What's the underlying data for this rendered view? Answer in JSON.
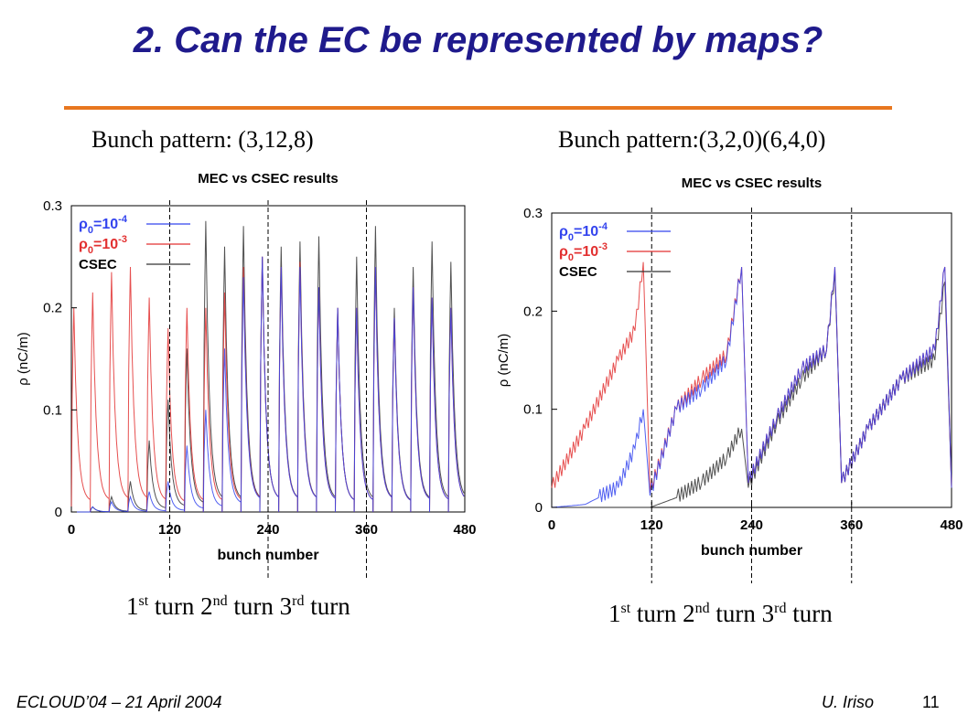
{
  "slide": {
    "title": "2. Can the EC be represented by maps?",
    "footer_left": "ECLOUD’04 – 21 April 2004",
    "footer_author": "U. Iriso",
    "page_number": "11"
  },
  "turn_labels": [
    {
      "n": "1",
      "sup": "st",
      "word": "turn"
    },
    {
      "n": "2",
      "sup": "nd",
      "word": "turn"
    },
    {
      "n": "3",
      "sup": "rd",
      "word": "turn"
    }
  ],
  "colors": {
    "title": "#1f1a8c",
    "rule": "#e8771f",
    "blue": "#3344ee",
    "red": "#e23030",
    "black": "#333333"
  },
  "chart_data": [
    {
      "type": "line",
      "subtitle": "Bunch pattern: (3,12,8)",
      "title": "MEC vs CSEC results",
      "xlabel": "bunch number",
      "ylabel": "ρ (nC/m)",
      "xlim": [
        0,
        480
      ],
      "ylim": [
        0,
        0.3
      ],
      "xticks": [
        "0",
        "120",
        "240",
        "360",
        "480"
      ],
      "yticks": [
        "0",
        "0.1",
        "0.2",
        "0.3"
      ],
      "turn_marks": [
        120,
        240,
        360
      ],
      "grid": false,
      "legend": "top-left",
      "pattern": {
        "period": 23,
        "train_length": 3
      },
      "series": [
        {
          "name": "ρ0=10-4",
          "color": "#3344ee",
          "x": [
            0,
            23,
            46,
            69,
            92,
            115,
            138,
            161,
            184,
            207,
            230,
            253,
            276,
            299,
            322,
            345,
            368,
            391,
            414,
            437,
            460
          ],
          "peaks": [
            0.0,
            0.005,
            0.01,
            0.015,
            0.02,
            0.03,
            0.065,
            0.1,
            0.16,
            0.23,
            0.25,
            0.24,
            0.24,
            0.22,
            0.2,
            0.2,
            0.24,
            0.19,
            0.22,
            0.21,
            0.2
          ]
        },
        {
          "name": "ρ0=10-3",
          "color": "#e23030",
          "x": [
            0,
            23,
            46,
            69,
            92,
            115,
            138,
            161,
            184,
            207,
            230,
            253,
            276,
            299,
            322,
            345,
            368,
            391,
            414,
            437,
            460
          ],
          "peaks": [
            0.2,
            0.215,
            0.235,
            0.24,
            0.21,
            0.18,
            0.2,
            0.2,
            0.215,
            0.24,
            0.25,
            0.24,
            0.245,
            0.22,
            0.2,
            0.2,
            0.24,
            0.19,
            0.22,
            0.21,
            0.2
          ]
        },
        {
          "name": "CSEC",
          "color": "#333333",
          "x": [
            0,
            23,
            46,
            69,
            92,
            115,
            138,
            161,
            184,
            207,
            230,
            253,
            276,
            299,
            322,
            345,
            368,
            391,
            414,
            437,
            460
          ],
          "peaks": [
            0.0,
            0.005,
            0.015,
            0.03,
            0.07,
            0.11,
            0.16,
            0.285,
            0.26,
            0.28,
            0.25,
            0.26,
            0.265,
            0.27,
            0.2,
            0.25,
            0.28,
            0.2,
            0.24,
            0.265,
            0.245
          ]
        }
      ]
    },
    {
      "type": "line",
      "subtitle": "Bunch pattern:(3,2,0)(6,4,0)",
      "title": "MEC vs CSEC results",
      "xlabel": "bunch number",
      "ylabel": "ρ (nC/m)",
      "xlim": [
        0,
        480
      ],
      "ylim": [
        0,
        0.3
      ],
      "xticks": [
        "0",
        "120",
        "240",
        "360",
        "480"
      ],
      "yticks": [
        "0",
        "0.1",
        "0.2",
        "0.3"
      ],
      "turn_marks": [
        120,
        240,
        360
      ],
      "grid": false,
      "legend": "top-left",
      "gap_positions": [
        110,
        228,
        340,
        472
      ],
      "series": [
        {
          "name": "ρ0=10-4",
          "color": "#3344ee",
          "x": [
            0,
            40,
            80,
            100,
            110,
            118,
            150,
            180,
            210,
            228,
            236,
            270,
            300,
            330,
            340,
            348,
            380,
            420,
            460,
            472
          ],
          "y": [
            0.0,
            0.003,
            0.02,
            0.06,
            0.1,
            0.012,
            0.1,
            0.12,
            0.15,
            0.245,
            0.025,
            0.09,
            0.14,
            0.16,
            0.245,
            0.025,
            0.08,
            0.13,
            0.16,
            0.245
          ]
        },
        {
          "name": "ρ0=10-3",
          "color": "#e23030",
          "x": [
            0,
            40,
            80,
            100,
            110,
            118,
            150,
            180,
            210,
            228,
            236,
            270,
            300,
            330,
            340,
            348,
            380,
            420,
            460,
            472
          ],
          "y": [
            0.02,
            0.08,
            0.15,
            0.18,
            0.25,
            0.015,
            0.1,
            0.13,
            0.155,
            0.245,
            0.025,
            0.09,
            0.14,
            0.16,
            0.245,
            0.025,
            0.08,
            0.13,
            0.16,
            0.245
          ]
        },
        {
          "name": "CSEC",
          "color": "#333333",
          "x": [
            0,
            40,
            80,
            100,
            110,
            118,
            150,
            180,
            210,
            228,
            236,
            270,
            300,
            330,
            340,
            348,
            380,
            420,
            460,
            472
          ],
          "y": [
            0.0,
            0.0,
            0.0,
            0.0,
            0.0,
            0.0,
            0.01,
            0.025,
            0.05,
            0.08,
            0.02,
            0.085,
            0.13,
            0.16,
            0.24,
            0.025,
            0.08,
            0.13,
            0.15,
            0.23
          ]
        }
      ]
    }
  ]
}
